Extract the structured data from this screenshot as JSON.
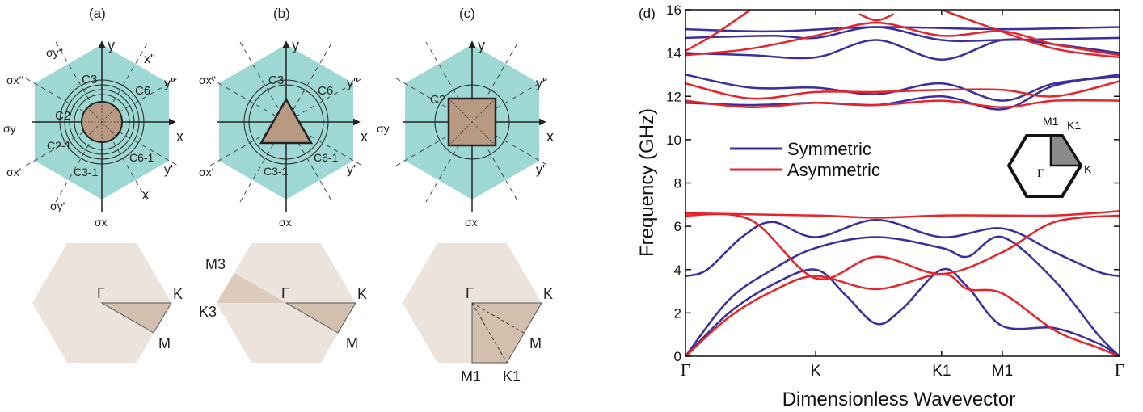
{
  "panels": {
    "a": {
      "label": "(a)"
    },
    "b": {
      "label": "(b)"
    },
    "c": {
      "label": "(c)"
    }
  },
  "axis_labels": {
    "x": "x",
    "y": "y",
    "x2": "x''",
    "x1": "x'",
    "y2": "y''",
    "y1": "y'"
  },
  "symmetry_labels": {
    "C3": "C3",
    "C6": "C6",
    "C2": "C2",
    "C2inv": "C2-1",
    "C3inv": "C3-1",
    "C6inv": "C6-1",
    "sx": "σx",
    "sy": "σy",
    "sx1": "σx'",
    "sx2": "σx''",
    "sy1": "σy'",
    "sy2": "σy''"
  },
  "bz_labels": {
    "gamma": "Γ",
    "K": "K",
    "M": "M",
    "M3": "M3",
    "K3": "K3",
    "M1": "M1",
    "K1": "K1"
  },
  "colors": {
    "hex_fill": "#9ed8d4",
    "scatterer": "#b89a82",
    "ibz_light": "#ebe3dc",
    "ibz_dark": "#d2bfae",
    "symmetric": "#3a2fa0",
    "asymmetric": "#e8232a"
  },
  "chart_data": {
    "type": "line",
    "panel_label": "(d)",
    "xlabel": "Dimensionless Wavevector",
    "ylabel": "Frequency (GHz)",
    "ylim": [
      0,
      16
    ],
    "yticks": [
      0,
      2,
      4,
      6,
      8,
      10,
      12,
      14,
      16
    ],
    "xlim": [
      0,
      1
    ],
    "xticks": [
      {
        "pos": 0.0,
        "label": "Γ"
      },
      {
        "pos": 0.3,
        "label": "K"
      },
      {
        "pos": 0.59,
        "label": "K1"
      },
      {
        "pos": 0.73,
        "label": "M1"
      },
      {
        "pos": 1.0,
        "label": "Γ"
      }
    ],
    "legend": {
      "placement": "center",
      "entries": [
        "Symmetric",
        "Asymmetric"
      ]
    },
    "inset_labels": {
      "M1": "M1",
      "K1": "K1",
      "K": "K",
      "gamma": "Γ"
    },
    "series": [
      {
        "name": "Symmetric",
        "color": "#3a2fa0",
        "bands": [
          [
            [
              0,
              0
            ],
            [
              0.1,
              2.0
            ],
            [
              0.2,
              3.3
            ],
            [
              0.3,
              4.0
            ],
            [
              0.37,
              2.8
            ],
            [
              0.44,
              1.5
            ],
            [
              0.5,
              2.2
            ],
            [
              0.59,
              4.0
            ],
            [
              0.65,
              3.2
            ],
            [
              0.73,
              1.4
            ],
            [
              0.85,
              1.3
            ],
            [
              0.95,
              0.6
            ],
            [
              1,
              0
            ]
          ],
          [
            [
              0,
              0
            ],
            [
              0.1,
              2.6
            ],
            [
              0.2,
              4.0
            ],
            [
              0.3,
              5.0
            ],
            [
              0.44,
              5.5
            ],
            [
              0.59,
              5.0
            ],
            [
              0.65,
              4.6
            ],
            [
              0.73,
              5.5
            ],
            [
              0.85,
              3.5
            ],
            [
              0.95,
              1.0
            ],
            [
              1,
              0
            ]
          ],
          [
            [
              0,
              3.7
            ],
            [
              0.05,
              4.0
            ],
            [
              0.13,
              5.5
            ],
            [
              0.2,
              6.2
            ],
            [
              0.3,
              5.5
            ],
            [
              0.44,
              6.3
            ],
            [
              0.59,
              5.5
            ],
            [
              0.73,
              5.9
            ],
            [
              0.85,
              4.8
            ],
            [
              0.95,
              3.9
            ],
            [
              1,
              3.7
            ]
          ],
          [
            [
              0,
              11.7
            ],
            [
              0.15,
              11.6
            ],
            [
              0.3,
              11.7
            ],
            [
              0.44,
              11.6
            ],
            [
              0.59,
              12.0
            ],
            [
              0.73,
              11.4
            ],
            [
              0.85,
              12.5
            ],
            [
              1,
              13.0
            ]
          ],
          [
            [
              0,
              13.0
            ],
            [
              0.15,
              12.4
            ],
            [
              0.3,
              12.4
            ],
            [
              0.44,
              12.1
            ],
            [
              0.59,
              12.6
            ],
            [
              0.73,
              11.8
            ],
            [
              0.85,
              12.6
            ],
            [
              1,
              12.9
            ]
          ],
          [
            [
              0,
              14.0
            ],
            [
              0.15,
              13.9
            ],
            [
              0.3,
              13.8
            ],
            [
              0.44,
              14.6
            ],
            [
              0.59,
              13.7
            ],
            [
              0.73,
              14.6
            ],
            [
              0.85,
              14.4
            ],
            [
              1,
              14.0
            ]
          ],
          [
            [
              0,
              14.7
            ],
            [
              0.2,
              14.8
            ],
            [
              0.3,
              14.7
            ],
            [
              0.44,
              15.2
            ],
            [
              0.59,
              14.6
            ],
            [
              0.73,
              14.6
            ],
            [
              1,
              14.7
            ]
          ],
          [
            [
              0,
              15.1
            ],
            [
              0.2,
              15.0
            ],
            [
              0.44,
              15.2
            ],
            [
              0.73,
              15.1
            ],
            [
              1,
              15.2
            ]
          ]
        ]
      },
      {
        "name": "Asymmetric",
        "color": "#e8232a",
        "bands": [
          [
            [
              0,
              0
            ],
            [
              0.1,
              1.8
            ],
            [
              0.2,
              3.0
            ],
            [
              0.3,
              3.7
            ],
            [
              0.44,
              3.1
            ],
            [
              0.59,
              3.8
            ],
            [
              0.65,
              3.1
            ],
            [
              0.73,
              2.9
            ],
            [
              0.85,
              1.2
            ],
            [
              0.95,
              0.4
            ],
            [
              1,
              0
            ]
          ],
          [
            [
              0,
              6.5
            ],
            [
              0.15,
              6.3
            ],
            [
              0.3,
              3.6
            ],
            [
              0.44,
              4.6
            ],
            [
              0.59,
              3.8
            ],
            [
              0.73,
              4.8
            ],
            [
              0.85,
              6.2
            ],
            [
              1,
              6.5
            ]
          ],
          [
            [
              0,
              6.6
            ],
            [
              0.3,
              6.5
            ],
            [
              0.44,
              6.4
            ],
            [
              0.59,
              6.5
            ],
            [
              0.73,
              6.5
            ],
            [
              0.85,
              6.5
            ],
            [
              1,
              6.7
            ]
          ],
          [
            [
              0,
              11.8
            ],
            [
              0.15,
              11.5
            ],
            [
              0.3,
              11.7
            ],
            [
              0.44,
              11.6
            ],
            [
              0.59,
              11.8
            ],
            [
              0.73,
              11.5
            ],
            [
              0.85,
              11.8
            ],
            [
              1,
              11.8
            ]
          ],
          [
            [
              0,
              12.6
            ],
            [
              0.15,
              11.9
            ],
            [
              0.3,
              12.2
            ],
            [
              0.44,
              12.2
            ],
            [
              0.59,
              12.3
            ],
            [
              0.73,
              12.3
            ],
            [
              0.85,
              12.0
            ],
            [
              1,
              12.7
            ]
          ],
          [
            [
              0,
              13.9
            ],
            [
              0.15,
              14.2
            ],
            [
              0.3,
              14.8
            ],
            [
              0.44,
              15.4
            ],
            [
              0.59,
              14.8
            ],
            [
              0.73,
              15.0
            ],
            [
              0.85,
              14.4
            ],
            [
              1,
              13.9
            ]
          ],
          [
            [
              0,
              14.1
            ],
            [
              0.07,
              14.9
            ],
            [
              0.15,
              16.0
            ]
          ],
          [
            [
              0.4,
              15.8
            ],
            [
              0.44,
              15.5
            ],
            [
              0.48,
              15.8
            ]
          ],
          [
            [
              0.59,
              16.0
            ],
            [
              0.7,
              15.2
            ],
            [
              0.85,
              14.2
            ],
            [
              1,
              13.8
            ]
          ]
        ]
      }
    ]
  }
}
